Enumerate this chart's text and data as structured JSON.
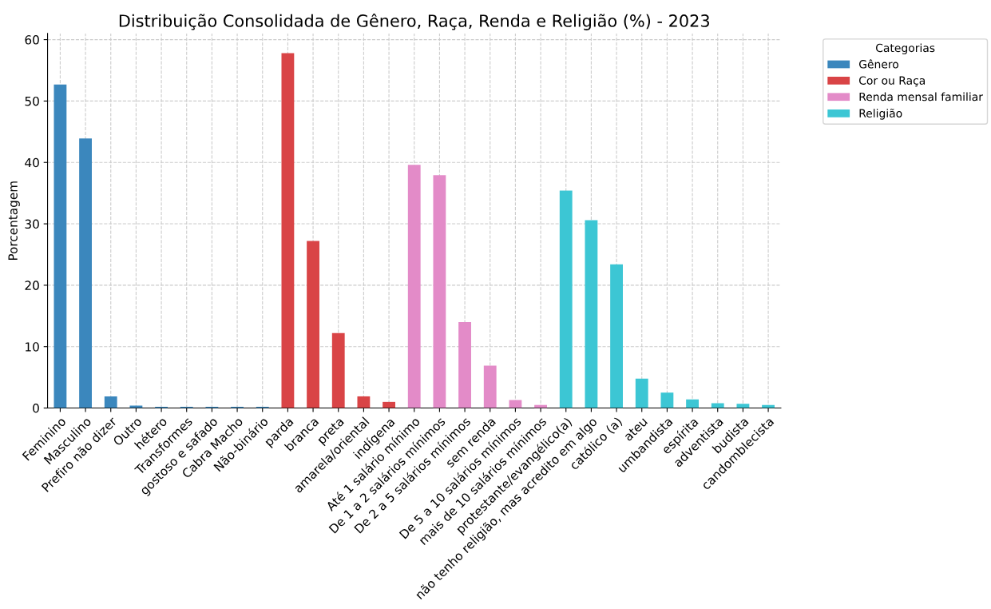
{
  "chart_data": {
    "type": "bar",
    "title": "Distribuição Consolidada de Gênero, Raça, Renda e Religião (%) - 2023",
    "ylabel": "Porcentagem",
    "legend_title": "Categorias",
    "categories": [
      "Feminino",
      "Masculino",
      "Prefiro não dizer",
      "Outro",
      "hétero",
      "Transformes",
      "gostoso e safado",
      "Cabra Macho",
      "Não-binário",
      "parda",
      "branca",
      "preta",
      "amarela/oriental",
      "indígena",
      "Até 1 salário mínimo",
      "De 1 a 2 salários mínimos",
      "De 2 a 5 salários mínimos",
      "sem renda",
      "De 5 a 10 salários mínimos",
      "mais de 10 salários mínimos",
      "protestante/evangélico(a)",
      "não tenho religião, mas acredito em algo",
      "católico (a)",
      "ateu",
      "umbandista",
      "espírita",
      "adventista",
      "budista",
      "candomblecista"
    ],
    "series": [
      {
        "name": "Gênero",
        "color": "#3b87bd",
        "values": [
          52.7,
          43.9,
          1.9,
          0.4,
          0.2,
          0.2,
          0.2,
          0.2,
          0.2,
          null,
          null,
          null,
          null,
          null,
          null,
          null,
          null,
          null,
          null,
          null,
          null,
          null,
          null,
          null,
          null,
          null,
          null,
          null,
          null
        ]
      },
      {
        "name": "Cor ou Raça",
        "color": "#d94446",
        "values": [
          null,
          null,
          null,
          null,
          null,
          null,
          null,
          null,
          null,
          57.8,
          27.2,
          12.2,
          1.9,
          1.0,
          null,
          null,
          null,
          null,
          null,
          null,
          null,
          null,
          null,
          null,
          null,
          null,
          null,
          null,
          null
        ]
      },
      {
        "name": "Renda mensal familiar",
        "color": "#e38bc8",
        "values": [
          null,
          null,
          null,
          null,
          null,
          null,
          null,
          null,
          null,
          null,
          null,
          null,
          null,
          null,
          39.6,
          37.9,
          14.0,
          6.9,
          1.3,
          0.5,
          null,
          null,
          null,
          null,
          null,
          null,
          null,
          null,
          null
        ]
      },
      {
        "name": "Religião",
        "color": "#3cc6d4",
        "values": [
          null,
          null,
          null,
          null,
          null,
          null,
          null,
          null,
          null,
          null,
          null,
          null,
          null,
          null,
          null,
          null,
          null,
          null,
          null,
          null,
          35.4,
          30.6,
          23.4,
          4.8,
          2.5,
          1.4,
          0.8,
          0.7,
          0.5
        ]
      }
    ],
    "ylim": [
      0,
      61
    ],
    "yticks": [
      0,
      10,
      20,
      30,
      40,
      50,
      60
    ],
    "grid": true,
    "legend": "top right"
  }
}
